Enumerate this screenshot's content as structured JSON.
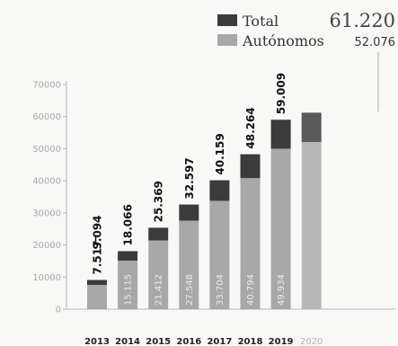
{
  "legend": {
    "total_label": "Total",
    "autonomos_label": "Autónomos",
    "total_value": "61.220",
    "autonomos_value": "52.076"
  },
  "colors": {
    "total": "#3b3b3b",
    "autonomos": "#a8a8a8",
    "axis": "#b5b5b5",
    "callout_line": "#aaaaaa"
  },
  "chart_data": {
    "type": "bar",
    "stacked": true,
    "categories": [
      "2013",
      "2014",
      "2015",
      "2016",
      "2017",
      "2018",
      "2019",
      "2020"
    ],
    "series": [
      {
        "name": "Total",
        "values": [
          9094,
          18066,
          25369,
          32597,
          40159,
          48264,
          59009,
          61220
        ]
      },
      {
        "name": "Autónomos",
        "values": [
          7517,
          15115,
          21412,
          27548,
          33704,
          40794,
          49934,
          52076
        ]
      }
    ],
    "total_labels": [
      "9.094",
      "18.066",
      "25.369",
      "32.597",
      "40.159",
      "48.264",
      "59.009",
      ""
    ],
    "autonomos_labels": [
      "7.517",
      "15.115",
      "21.412",
      "27.548",
      "33.704",
      "40.794",
      "49.934",
      ""
    ],
    "yticks": [
      0,
      10000,
      20000,
      30000,
      40000,
      50000,
      60000,
      70000
    ],
    "ytick_labels": [
      "0",
      "10000",
      "20000",
      "30000",
      "40000",
      "50000",
      "60000",
      "70000"
    ],
    "ylim": [
      0,
      70000
    ],
    "title": "",
    "xlabel": "",
    "ylabel": "",
    "grid": false,
    "legend_position": "top-right"
  }
}
